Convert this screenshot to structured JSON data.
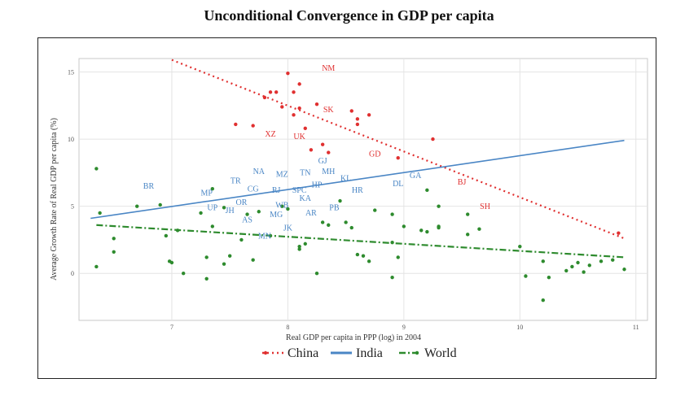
{
  "chart_data": {
    "type": "scatter",
    "title": "Unconditional Convergence in GDP per capita",
    "xlabel": "Real GDP per capita in PPP (log) in 2004",
    "ylabel": "Average Growth Rate of Real GDP per capita (%)",
    "xlim": [
      6.2,
      11.1
    ],
    "ylim": [
      -3.5,
      16
    ],
    "x_ticks": [
      7,
      8,
      9,
      10,
      11
    ],
    "y_ticks": [
      0,
      5,
      10,
      15
    ],
    "grid": true,
    "legend_position": "bottom",
    "series": [
      {
        "name": "China",
        "color": "#e03030",
        "fit": {
          "x": [
            7.0,
            10.9
          ],
          "y": [
            15.9,
            2.6
          ]
        },
        "points": [
          {
            "x": 7.55,
            "y": 11.1
          },
          {
            "x": 7.8,
            "y": 13.1
          },
          {
            "x": 7.85,
            "y": 13.5
          },
          {
            "x": 7.9,
            "y": 13.5
          },
          {
            "x": 7.95,
            "y": 12.4
          },
          {
            "x": 8.0,
            "y": 14.9
          },
          {
            "x": 8.05,
            "y": 13.5
          },
          {
            "x": 8.1,
            "y": 14.1
          },
          {
            "x": 8.1,
            "y": 12.3
          },
          {
            "x": 8.15,
            "y": 10.8
          },
          {
            "x": 8.2,
            "y": 9.2
          },
          {
            "x": 8.25,
            "y": 12.6
          },
          {
            "x": 8.3,
            "y": 9.6
          },
          {
            "x": 8.35,
            "y": 9.0
          },
          {
            "x": 8.55,
            "y": 12.1
          },
          {
            "x": 8.6,
            "y": 11.5
          },
          {
            "x": 8.7,
            "y": 11.8
          },
          {
            "x": 8.95,
            "y": 8.6
          },
          {
            "x": 9.25,
            "y": 10.0
          },
          {
            "x": 10.85,
            "y": 3.0
          },
          {
            "x": 7.7,
            "y": 11.0
          },
          {
            "x": 8.05,
            "y": 11.8
          },
          {
            "x": 8.6,
            "y": 11.1
          }
        ],
        "labels": [
          {
            "text": "NM",
            "x": 8.35,
            "y": 15.1
          },
          {
            "text": "SK",
            "x": 8.35,
            "y": 12.0
          },
          {
            "text": "XZ",
            "x": 7.85,
            "y": 10.2
          },
          {
            "text": "UK",
            "x": 8.1,
            "y": 10.0
          },
          {
            "text": "GD",
            "x": 8.75,
            "y": 8.7
          },
          {
            "text": "BJ",
            "x": 9.5,
            "y": 6.6
          },
          {
            "text": "SH",
            "x": 9.7,
            "y": 4.8
          }
        ]
      },
      {
        "name": "India",
        "color": "#4a86c5",
        "fit": {
          "x": [
            6.3,
            10.9
          ],
          "y": [
            4.1,
            9.9
          ]
        },
        "labels": [
          {
            "text": "BR",
            "x": 6.8,
            "y": 6.3
          },
          {
            "text": "TR",
            "x": 7.55,
            "y": 6.7
          },
          {
            "text": "NA",
            "x": 7.75,
            "y": 7.4
          },
          {
            "text": "MZ",
            "x": 7.95,
            "y": 7.2
          },
          {
            "text": "TN",
            "x": 8.15,
            "y": 7.3
          },
          {
            "text": "MH",
            "x": 8.35,
            "y": 7.4
          },
          {
            "text": "GJ",
            "x": 8.3,
            "y": 8.2
          },
          {
            "text": "KL",
            "x": 8.5,
            "y": 6.9
          },
          {
            "text": "GA",
            "x": 9.1,
            "y": 7.1
          },
          {
            "text": "DL",
            "x": 8.95,
            "y": 6.5
          },
          {
            "text": "HR",
            "x": 8.6,
            "y": 6.0
          },
          {
            "text": "CG",
            "x": 7.7,
            "y": 6.1
          },
          {
            "text": "MP",
            "x": 7.3,
            "y": 5.8
          },
          {
            "text": "RJ",
            "x": 7.9,
            "y": 6.0
          },
          {
            "text": "SPC",
            "x": 8.1,
            "y": 6.0
          },
          {
            "text": "HP",
            "x": 8.25,
            "y": 6.4
          },
          {
            "text": "KA",
            "x": 8.15,
            "y": 5.4
          },
          {
            "text": "OR",
            "x": 7.6,
            "y": 5.1
          },
          {
            "text": "WB",
            "x": 7.95,
            "y": 4.9
          },
          {
            "text": "PB",
            "x": 8.4,
            "y": 4.7
          },
          {
            "text": "UP",
            "x": 7.35,
            "y": 4.7
          },
          {
            "text": "JH",
            "x": 7.5,
            "y": 4.5
          },
          {
            "text": "MG",
            "x": 7.9,
            "y": 4.2
          },
          {
            "text": "AR",
            "x": 8.2,
            "y": 4.3
          },
          {
            "text": "AS",
            "x": 7.65,
            "y": 3.8
          },
          {
            "text": "JK",
            "x": 8.0,
            "y": 3.2
          },
          {
            "text": "MN",
            "x": 7.8,
            "y": 2.6
          }
        ]
      },
      {
        "name": "World",
        "color": "#2e8b2e",
        "fit": {
          "x": [
            6.35,
            10.9
          ],
          "y": [
            3.6,
            1.2
          ]
        },
        "points": [
          {
            "x": 6.35,
            "y": 7.8
          },
          {
            "x": 6.38,
            "y": 4.5
          },
          {
            "x": 6.35,
            "y": 0.5
          },
          {
            "x": 6.5,
            "y": 2.6
          },
          {
            "x": 6.5,
            "y": 1.6
          },
          {
            "x": 6.7,
            "y": 5.0
          },
          {
            "x": 6.9,
            "y": 5.1
          },
          {
            "x": 6.95,
            "y": 2.8
          },
          {
            "x": 6.98,
            "y": 0.9
          },
          {
            "x": 7.0,
            "y": 0.8
          },
          {
            "x": 7.05,
            "y": 3.2
          },
          {
            "x": 7.1,
            "y": 0.0
          },
          {
            "x": 7.25,
            "y": 4.5
          },
          {
            "x": 7.3,
            "y": 1.2
          },
          {
            "x": 7.3,
            "y": -0.4
          },
          {
            "x": 7.35,
            "y": 6.3
          },
          {
            "x": 7.35,
            "y": 3.5
          },
          {
            "x": 7.45,
            "y": 4.9
          },
          {
            "x": 7.45,
            "y": 0.7
          },
          {
            "x": 7.5,
            "y": 1.3
          },
          {
            "x": 7.6,
            "y": 2.5
          },
          {
            "x": 7.65,
            "y": 4.4
          },
          {
            "x": 7.7,
            "y": 1.0
          },
          {
            "x": 7.75,
            "y": 4.6
          },
          {
            "x": 7.85,
            "y": 2.8
          },
          {
            "x": 7.95,
            "y": 5.0
          },
          {
            "x": 8.0,
            "y": 4.8
          },
          {
            "x": 8.1,
            "y": 2.0
          },
          {
            "x": 8.1,
            "y": 1.8
          },
          {
            "x": 8.15,
            "y": 2.2
          },
          {
            "x": 8.25,
            "y": 0.0
          },
          {
            "x": 8.3,
            "y": 3.8
          },
          {
            "x": 8.35,
            "y": 3.6
          },
          {
            "x": 8.45,
            "y": 5.4
          },
          {
            "x": 8.5,
            "y": 3.8
          },
          {
            "x": 8.55,
            "y": 3.4
          },
          {
            "x": 8.6,
            "y": 1.4
          },
          {
            "x": 8.65,
            "y": 1.3
          },
          {
            "x": 8.7,
            "y": 0.9
          },
          {
            "x": 8.75,
            "y": 4.7
          },
          {
            "x": 8.9,
            "y": 4.4
          },
          {
            "x": 8.9,
            "y": 2.3
          },
          {
            "x": 8.9,
            "y": -0.3
          },
          {
            "x": 8.95,
            "y": 1.2
          },
          {
            "x": 9.0,
            "y": 3.5
          },
          {
            "x": 9.15,
            "y": 3.2
          },
          {
            "x": 9.2,
            "y": 3.1
          },
          {
            "x": 9.2,
            "y": 6.2
          },
          {
            "x": 9.3,
            "y": 5.0
          },
          {
            "x": 9.3,
            "y": 3.4
          },
          {
            "x": 9.3,
            "y": 3.5
          },
          {
            "x": 9.55,
            "y": 4.4
          },
          {
            "x": 9.55,
            "y": 2.9
          },
          {
            "x": 9.65,
            "y": 3.3
          },
          {
            "x": 10.0,
            "y": 2.0
          },
          {
            "x": 10.05,
            "y": -0.2
          },
          {
            "x": 10.2,
            "y": 0.9
          },
          {
            "x": 10.2,
            "y": -2.0
          },
          {
            "x": 10.25,
            "y": -0.3
          },
          {
            "x": 10.4,
            "y": 0.2
          },
          {
            "x": 10.45,
            "y": 0.5
          },
          {
            "x": 10.5,
            "y": 0.8
          },
          {
            "x": 10.55,
            "y": 0.1
          },
          {
            "x": 10.6,
            "y": 0.6
          },
          {
            "x": 10.7,
            "y": 0.9
          },
          {
            "x": 10.8,
            "y": 1.0
          },
          {
            "x": 10.9,
            "y": 0.3
          }
        ]
      }
    ]
  }
}
